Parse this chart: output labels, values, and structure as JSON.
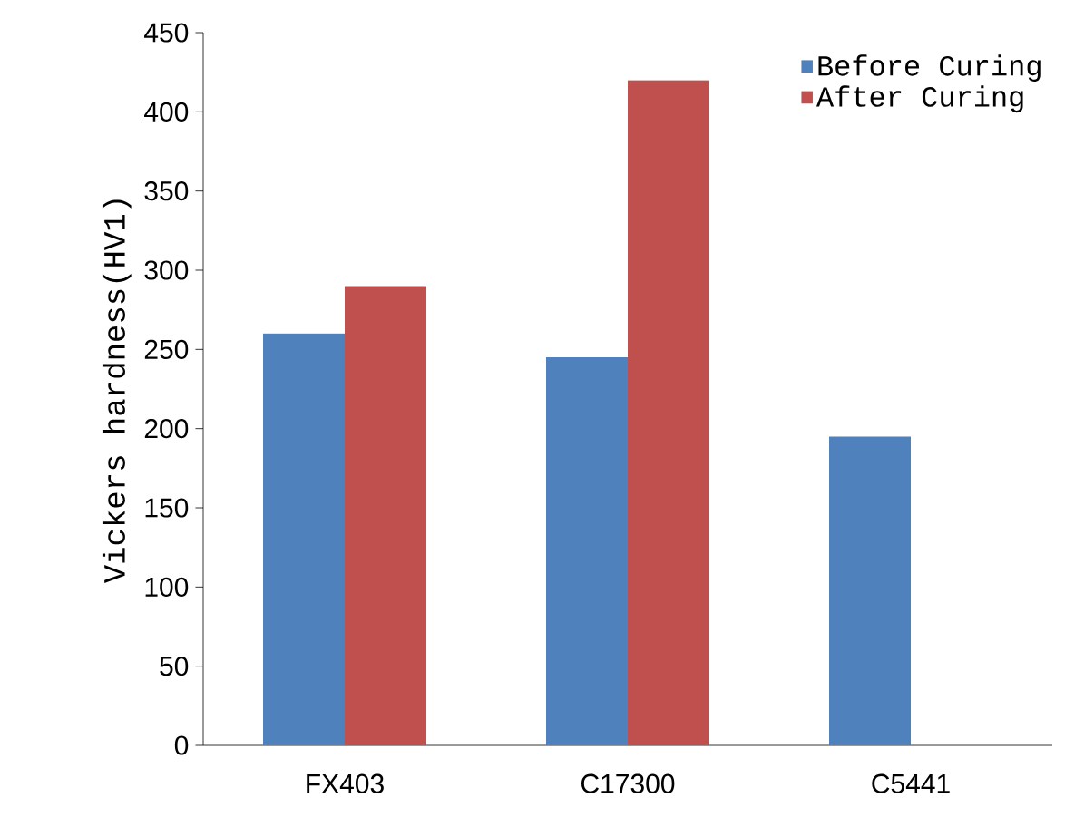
{
  "chart_data": {
    "type": "bar",
    "ylabel": "Vickers hardness(HV1)",
    "categories": [
      "FX403",
      "C17300",
      "C5441"
    ],
    "series": [
      {
        "name": "Before Curing",
        "color": "#4f81bd",
        "values": [
          260,
          245,
          195
        ]
      },
      {
        "name": "After Curing",
        "color": "#c0504d",
        "values": [
          290,
          420,
          null
        ]
      }
    ],
    "ylim": [
      0,
      450
    ],
    "yticks": [
      0,
      50,
      100,
      150,
      200,
      250,
      300,
      350,
      400,
      450
    ],
    "grid": false,
    "legend": "top right"
  }
}
